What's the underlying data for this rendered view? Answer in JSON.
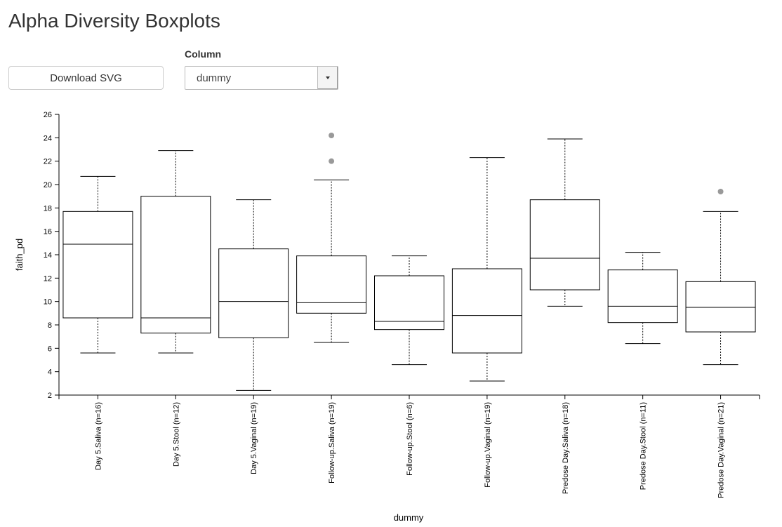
{
  "page": {
    "title": "Alpha Diversity Boxplots"
  },
  "controls": {
    "download_label": "Download SVG",
    "column_label": "Column",
    "column_selected": "dummy"
  },
  "chart_data": {
    "type": "boxplot",
    "xlabel": "dummy",
    "ylabel": "faith_pd",
    "ylim": [
      2,
      26
    ],
    "yticks": [
      2,
      4,
      6,
      8,
      10,
      12,
      14,
      16,
      18,
      20,
      22,
      24,
      26
    ],
    "categories": [
      "Day 5.Saliva (n=16)",
      "Day 5.Stool (n=12)",
      "Day 5.Vaginal (n=19)",
      "Follow-up.Saliva (n=19)",
      "Follow-up.Stool (n=6)",
      "Follow-up.Vaginal (n=19)",
      "Predose Day.Saliva (n=18)",
      "Predose Day.Stool (n=11)",
      "Predose Day.Vaginal (n=21)"
    ],
    "boxes": [
      {
        "whisker_low": 5.6,
        "q1": 8.6,
        "median": 14.9,
        "q3": 17.7,
        "whisker_high": 20.7,
        "outliers": []
      },
      {
        "whisker_low": 5.6,
        "q1": 7.3,
        "median": 8.6,
        "q3": 19.0,
        "whisker_high": 22.9,
        "outliers": []
      },
      {
        "whisker_low": 2.4,
        "q1": 6.9,
        "median": 10.0,
        "q3": 14.5,
        "whisker_high": 18.7,
        "outliers": []
      },
      {
        "whisker_low": 6.5,
        "q1": 9.0,
        "median": 9.9,
        "q3": 13.9,
        "whisker_high": 20.4,
        "outliers": [
          22.0,
          24.2
        ]
      },
      {
        "whisker_low": 4.6,
        "q1": 7.6,
        "median": 8.3,
        "q3": 12.2,
        "whisker_high": 13.9,
        "outliers": []
      },
      {
        "whisker_low": 3.2,
        "q1": 5.6,
        "median": 8.8,
        "q3": 12.8,
        "whisker_high": 22.3,
        "outliers": []
      },
      {
        "whisker_low": 9.6,
        "q1": 11.0,
        "median": 13.7,
        "q3": 18.7,
        "whisker_high": 23.9,
        "outliers": []
      },
      {
        "whisker_low": 6.4,
        "q1": 8.2,
        "median": 9.6,
        "q3": 12.7,
        "whisker_high": 14.2,
        "outliers": []
      },
      {
        "whisker_low": 4.6,
        "q1": 7.4,
        "median": 9.5,
        "q3": 11.7,
        "whisker_high": 17.7,
        "outliers": [
          19.4
        ]
      }
    ],
    "colors": {
      "box_fill": "#ffffff",
      "stroke": "#000000",
      "outlier": "#999999"
    },
    "grid": false
  }
}
